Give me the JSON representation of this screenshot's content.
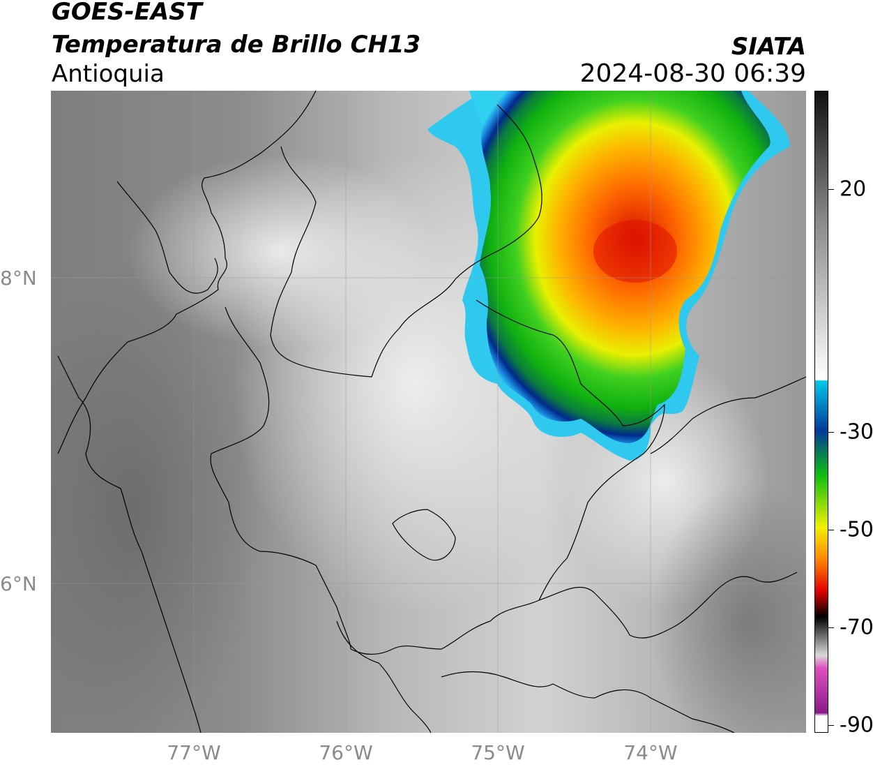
{
  "header": {
    "satellite": "GOES-EAST",
    "product": "Temperatura de Brillo CH13",
    "region": "Antioquia",
    "brand": "SIATA",
    "timestamp": "2024-08-30 06:39"
  },
  "map": {
    "lat_labels": [
      "8°N",
      "6°N"
    ],
    "lon_labels": [
      "77°W",
      "76°W",
      "75°W",
      "74°W"
    ],
    "lon_range": [
      -77.95,
      -73.0
    ],
    "lat_range": [
      5.0,
      9.2
    ]
  },
  "colorbar": {
    "tick_labels": [
      "20",
      "-30",
      "-50",
      "-70",
      "-90"
    ],
    "colors": {
      "warm_gray_dark": "#111111",
      "warm_gray_mid": "#888888",
      "white": "#ffffff",
      "cyan": "#00c8e8",
      "blue": "#003a9a",
      "green": "#10c010",
      "yellow": "#f0f000",
      "orange": "#ff8800",
      "red": "#e00000",
      "black": "#000000",
      "magenta": "#e050c0",
      "purple": "#8a1a8a"
    }
  }
}
